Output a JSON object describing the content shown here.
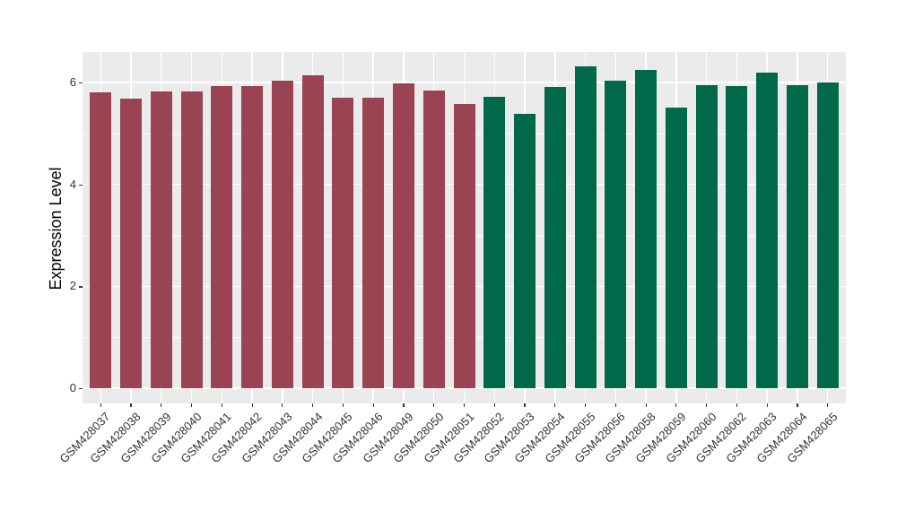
{
  "chart_data": {
    "type": "bar",
    "title": "",
    "xlabel": "",
    "ylabel": "Expression Level",
    "categories": [
      "GSM428037",
      "GSM428038",
      "GSM428039",
      "GSM428040",
      "GSM428041",
      "GSM428042",
      "GSM428043",
      "GSM428044",
      "GSM428045",
      "GSM428046",
      "GSM428049",
      "GSM428050",
      "GSM428051",
      "GSM428052",
      "GSM428053",
      "GSM428054",
      "GSM428055",
      "GSM428056",
      "GSM428058",
      "GSM428059",
      "GSM428060",
      "GSM428062",
      "GSM428063",
      "GSM428064",
      "GSM428065"
    ],
    "values": [
      5.8,
      5.69,
      5.83,
      5.83,
      5.93,
      5.93,
      6.04,
      6.15,
      5.7,
      5.71,
      5.99,
      5.85,
      5.58,
      5.72,
      5.38,
      5.92,
      6.31,
      6.03,
      6.25,
      5.5,
      5.95,
      5.93,
      6.19,
      5.94,
      6.01
    ],
    "bar_groups": [
      {
        "color": "#9A4352",
        "start_index": 0,
        "count": 13
      },
      {
        "color": "#00694A",
        "start_index": 13,
        "count": 12
      }
    ],
    "yticks_major": [
      0,
      2,
      4,
      6
    ],
    "yticks_minor": [
      1,
      3,
      5
    ],
    "ylim": [
      -0.3,
      6.6
    ],
    "legend": "none",
    "grid": "on",
    "panel_background": "#EBEBEB",
    "grid_color": "#FFFFFF",
    "tick_color": "#333333",
    "axis_text_color": "#333333"
  }
}
